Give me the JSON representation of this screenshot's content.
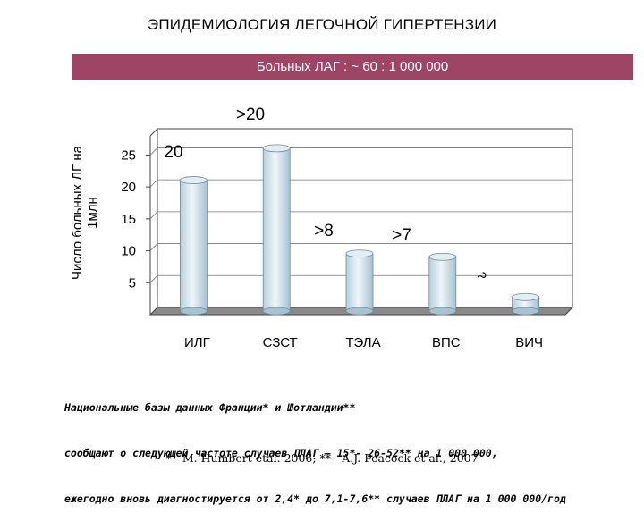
{
  "slide": {
    "title": "ЭПИДЕМИОЛОГИЯ ЛЕГОЧНОЙ ГИПЕРТЕНЗИИ",
    "subtitle": "Больных ЛАГ : ~ 60 : 1 000 000",
    "note_lines": [
      "Национальные базы данных Франции* и Шотландии**",
      "сообщают о следующей частоте случаев ПЛАГ – 15*- 26-52** на 1 000 000,",
      "ежегодно вновь диагностируется от 2,4* до 7,1-7,6** случаев ПЛАГ на 1 000 000/год"
    ],
    "references": "* - M. Humbert etal. 2006; ** - A.J. Peacock et al., 2007",
    "band_color": "#9e4565"
  },
  "chart_data": {
    "type": "bar",
    "ylabel_lines": [
      "Число больных ЛГ на",
      "1млн"
    ],
    "categories": [
      "ИЛГ",
      "СЗСТ",
      "ТЭЛА",
      "ВПС",
      "ВИЧ"
    ],
    "values": [
      20.5,
      25.5,
      9,
      8.5,
      2.2
    ],
    "data_labels": [
      "20",
      ">20",
      ">8",
      ">7",
      "?"
    ],
    "yticks": [
      "5",
      "10",
      "15",
      "20",
      "25"
    ],
    "ytick_values": [
      5,
      10,
      15,
      20,
      25
    ],
    "ylim": [
      0,
      28
    ],
    "grid": true,
    "legend": "none",
    "style": "3d-cylinder",
    "bar_color": "#c5dde8"
  }
}
